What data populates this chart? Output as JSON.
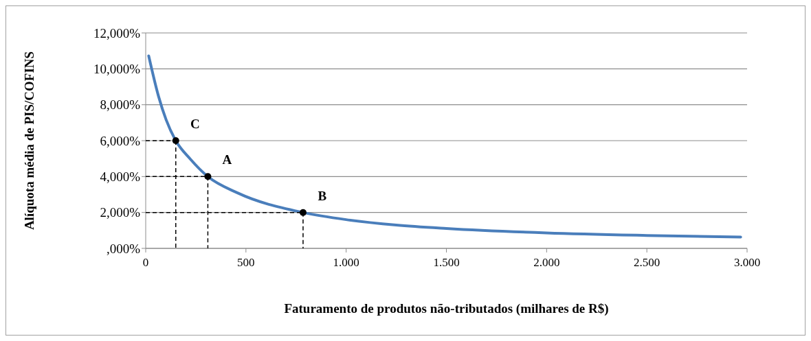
{
  "chart_data": {
    "type": "line",
    "xlabel": "Faturamento de produtos não-tributados (milhares de R$)",
    "ylabel": "Alíquota média de PIS/COFINS",
    "series": [
      {
        "color": "#4a7ebb",
        "marker": "none",
        "x": [
          15,
          64,
          102,
          150,
          223,
          310,
          460,
          785,
          1000,
          1250,
          1500,
          2000,
          2500,
          2968
        ],
        "values": [
          10.72,
          8.47,
          7.16,
          6.0,
          4.97,
          4.0,
          3.08,
          2.0,
          1.6,
          1.3,
          1.11,
          0.86,
          0.72,
          0.63
        ]
      },
      {
        "type": "scatter",
        "color": "#000000",
        "marker": "circle",
        "x": [
          150,
          310,
          785
        ],
        "values": [
          6,
          4,
          2
        ]
      }
    ],
    "annotations": [
      {
        "text": "C",
        "x": 150,
        "y": 6
      },
      {
        "text": "A",
        "x": 310,
        "y": 4
      },
      {
        "text": "B",
        "x": 785,
        "y": 2
      }
    ],
    "xlim": [
      0,
      3000
    ],
    "xticks": [
      0,
      500,
      {
        "value": 1000,
        "label": "1.000"
      },
      {
        "value": 1500,
        "label": "1.500"
      },
      {
        "value": 2000,
        "label": "2.000"
      },
      {
        "value": 2500,
        "label": "2.500"
      },
      {
        "value": 3000,
        "label": "3.000"
      }
    ],
    "ylim": [
      0,
      12
    ],
    "yticks": [
      {
        "value": 0,
        "label": ",000%"
      },
      {
        "value": 2,
        "label": "2,000%"
      },
      {
        "value": 4,
        "label": "4,000%"
      },
      {
        "value": 6,
        "label": "6,000%"
      },
      {
        "value": 8,
        "label": "8,000%"
      },
      {
        "value": 10,
        "label": "10,000%"
      },
      {
        "value": 12,
        "label": "12,000%"
      }
    ],
    "grid": "y"
  }
}
